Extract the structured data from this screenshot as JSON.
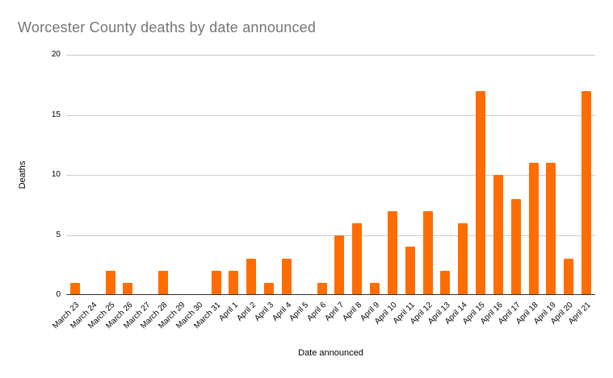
{
  "chart_data": {
    "type": "bar",
    "title": "Worcester County deaths by date announced",
    "xlabel": "Date announced",
    "ylabel": "Deaths",
    "categories": [
      "March 23",
      "March 24",
      "March 25",
      "March 26",
      "March 27",
      "March 28",
      "March 29",
      "March 30",
      "March 31",
      "April 1",
      "April 2",
      "April 3",
      "April 4",
      "April 5",
      "April 6",
      "April 7",
      "April 8",
      "April 9",
      "April 10",
      "April 11",
      "April 12",
      "April 13",
      "April 14",
      "April 15",
      "April 16",
      "April 17",
      "April 18",
      "April 19",
      "April 20",
      "April 21"
    ],
    "values": [
      1,
      0,
      2,
      1,
      0,
      2,
      0,
      0,
      2,
      2,
      3,
      1,
      3,
      0,
      1,
      5,
      6,
      1,
      7,
      4,
      7,
      2,
      6,
      17,
      10,
      8,
      11,
      11,
      3,
      17
    ],
    "ylim": [
      0,
      20
    ],
    "yticks": [
      "0",
      "5",
      "10",
      "15",
      "20"
    ],
    "grid": true,
    "legend_position": "none",
    "colors": {
      "bar": "#FF6D01",
      "title_text": "#757575",
      "gridline": "#CCCCCC",
      "baseline": "#333333",
      "tick_text": "#000000"
    }
  }
}
